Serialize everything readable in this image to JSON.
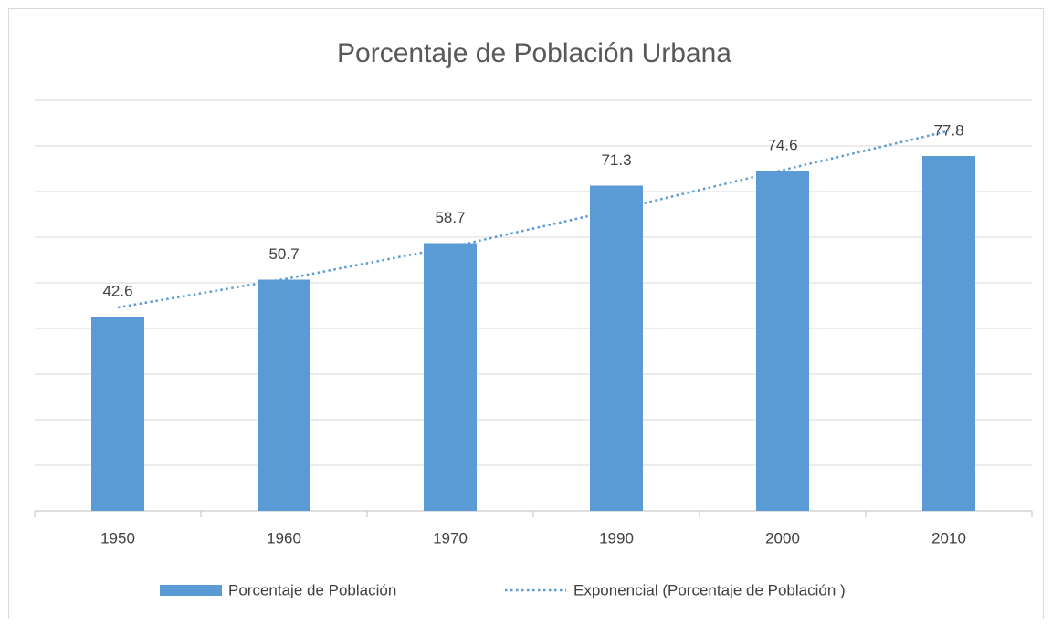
{
  "chart_data": {
    "type": "bar",
    "title": "Porcentaje de Población Urbana",
    "categories": [
      "1950",
      "1960",
      "1970",
      "1990",
      "2000",
      "2010"
    ],
    "series": [
      {
        "name": "Porcentaje de Población",
        "type": "bar",
        "color": "#5b9bd5",
        "values": [
          42.6,
          50.7,
          58.7,
          71.3,
          74.6,
          77.8
        ]
      },
      {
        "name": "Exponencial (Porcentaje de Población )",
        "type": "line",
        "color": "#5b9bd5",
        "values": [
          44.6,
          50.8,
          57.8,
          66.0,
          74.7,
          83.3
        ]
      }
    ],
    "ylim": [
      0,
      90
    ],
    "yticks": [
      0,
      10,
      20,
      30,
      40,
      50,
      60,
      70,
      80,
      90
    ],
    "grid": true,
    "legend": "bottom"
  }
}
